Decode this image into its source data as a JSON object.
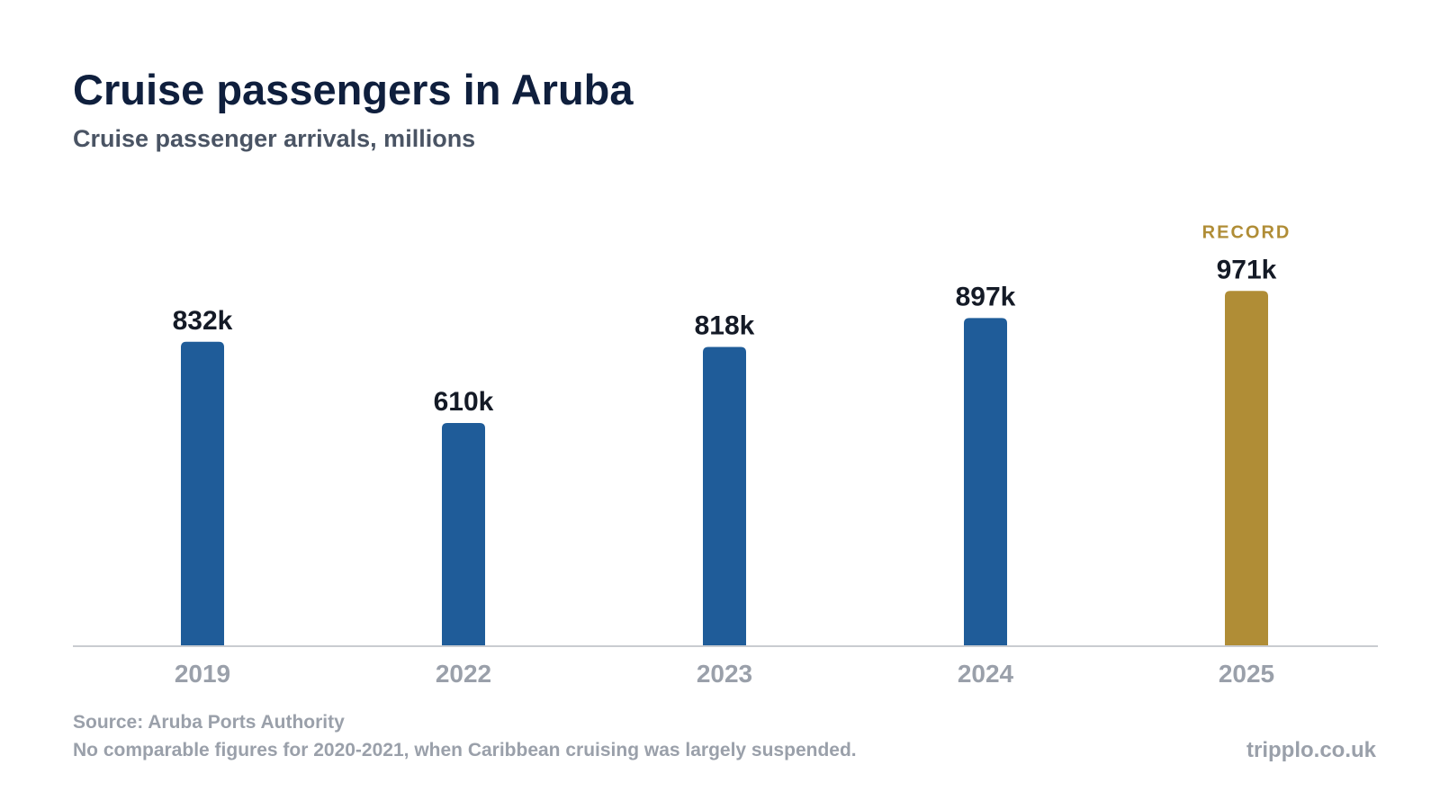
{
  "title": "Cruise passengers in Aruba",
  "subtitle": "Cruise passenger arrivals, millions",
  "source": "Source: Aruba Ports Authority",
  "note": "No comparable figures for 2020-2021, when Caribbean cruising was largely suspended.",
  "brand": "tripplo.co.uk",
  "colors": {
    "bar": "#1f5c99",
    "highlight": "#b08d36",
    "value_label": "#141a26",
    "axis_label": "#9aa0aa",
    "baseline": "#c9ccd1"
  },
  "chart_data": {
    "type": "bar",
    "categories": [
      "2019",
      "2022",
      "2023",
      "2024",
      "2025"
    ],
    "values": [
      832,
      610,
      818,
      897,
      971
    ],
    "value_labels": [
      "832k",
      "610k",
      "818k",
      "897k",
      "971k"
    ],
    "highlight": {
      "category": "2025",
      "tag": "RECORD"
    },
    "ylim": [
      0,
      1000
    ],
    "grid": false,
    "legend": "none"
  }
}
